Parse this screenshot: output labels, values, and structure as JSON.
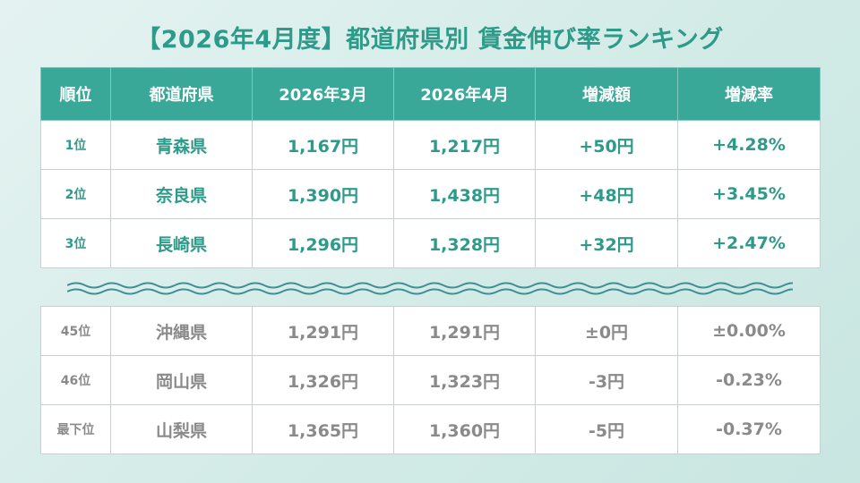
{
  "title": "【2026年4月度】都道府県別 賃金伸び率ランキング",
  "colors": {
    "accent": "#3aa898",
    "accent_text": "#2e9a8a",
    "muted_text": "#8a8a8a"
  },
  "headers": [
    "順位",
    "都道府県",
    "2026年3月",
    "2026年4月",
    "増減額",
    "増減率"
  ],
  "top_rows": [
    {
      "rank": "1位",
      "prefecture": "青森県",
      "march": "1,167円",
      "april": "1,217円",
      "change": "+50円",
      "rate": "+4.28%"
    },
    {
      "rank": "2位",
      "prefecture": "奈良県",
      "march": "1,390円",
      "april": "1,438円",
      "change": "+48円",
      "rate": "+3.45%"
    },
    {
      "rank": "3位",
      "prefecture": "長崎県",
      "march": "1,296円",
      "april": "1,328円",
      "change": "+32円",
      "rate": "+2.47%"
    }
  ],
  "bottom_rows": [
    {
      "rank": "45位",
      "prefecture": "沖縄県",
      "march": "1,291円",
      "april": "1,291円",
      "change": "±0円",
      "rate": "±0.00%"
    },
    {
      "rank": "46位",
      "prefecture": "岡山県",
      "march": "1,326円",
      "april": "1,323円",
      "change": "-3円",
      "rate": "-0.23%"
    },
    {
      "rank": "最下位",
      "prefecture": "山梨県",
      "march": "1,365円",
      "april": "1,360円",
      "change": "-5円",
      "rate": "-0.37%"
    }
  ]
}
